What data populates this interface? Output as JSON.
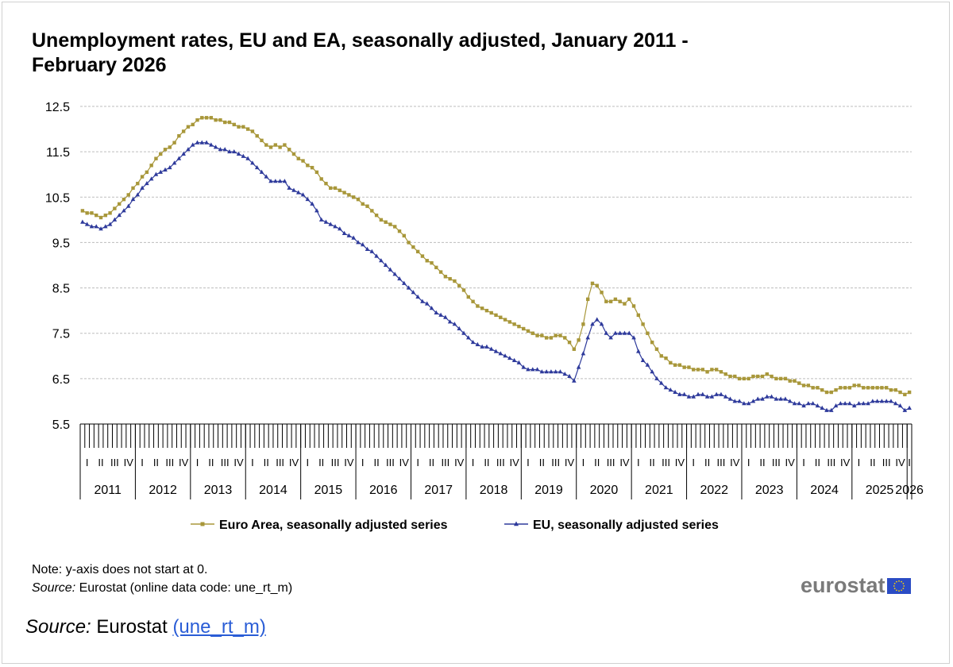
{
  "chart_data": {
    "type": "line",
    "title": "Unemployment rates, EU and EA, seasonally adjusted, January 2011 - February 2026",
    "ylim": [
      5.5,
      12.5
    ],
    "yticks": [
      "12.5",
      "11.5",
      "10.5",
      "9.5",
      "8.5",
      "7.5",
      "6.5",
      "5.5"
    ],
    "years": [
      "2011",
      "2012",
      "2013",
      "2014",
      "2015",
      "2016",
      "2017",
      "2018",
      "2019",
      "2020",
      "2021",
      "2022",
      "2023",
      "2024",
      "2025",
      "2026"
    ],
    "quarters": [
      "I",
      "II",
      "III",
      "IV"
    ],
    "x_start": "2011-01",
    "x_end": "2026-02",
    "series": [
      {
        "name": "Euro Area, seasonally adjusted series",
        "color": "#a8973a",
        "marker": "square",
        "values": [
          10.2,
          10.15,
          10.15,
          10.1,
          10.05,
          10.1,
          10.15,
          10.25,
          10.35,
          10.45,
          10.55,
          10.7,
          10.8,
          10.95,
          11.05,
          11.2,
          11.35,
          11.45,
          11.55,
          11.6,
          11.7,
          11.85,
          11.95,
          12.05,
          12.1,
          12.2,
          12.25,
          12.25,
          12.25,
          12.2,
          12.2,
          12.15,
          12.15,
          12.1,
          12.05,
          12.05,
          12.0,
          11.95,
          11.85,
          11.75,
          11.65,
          11.6,
          11.65,
          11.6,
          11.65,
          11.55,
          11.45,
          11.35,
          11.3,
          11.2,
          11.15,
          11.05,
          10.9,
          10.8,
          10.7,
          10.7,
          10.65,
          10.6,
          10.55,
          10.5,
          10.45,
          10.35,
          10.3,
          10.2,
          10.1,
          10.0,
          9.95,
          9.9,
          9.85,
          9.75,
          9.65,
          9.5,
          9.4,
          9.3,
          9.2,
          9.1,
          9.05,
          8.95,
          8.85,
          8.75,
          8.7,
          8.65,
          8.55,
          8.45,
          8.3,
          8.2,
          8.1,
          8.05,
          8.0,
          7.95,
          7.9,
          7.85,
          7.8,
          7.75,
          7.7,
          7.65,
          7.6,
          7.55,
          7.5,
          7.45,
          7.45,
          7.4,
          7.4,
          7.45,
          7.45,
          7.4,
          7.3,
          7.15,
          7.35,
          7.7,
          8.25,
          8.6,
          8.55,
          8.4,
          8.2,
          8.2,
          8.25,
          8.2,
          8.15,
          8.25,
          8.1,
          7.9,
          7.7,
          7.5,
          7.3,
          7.15,
          7.0,
          6.95,
          6.85,
          6.8,
          6.8,
          6.75,
          6.75,
          6.7,
          6.7,
          6.7,
          6.65,
          6.7,
          6.7,
          6.65,
          6.6,
          6.55,
          6.55,
          6.5,
          6.5,
          6.5,
          6.55,
          6.55,
          6.55,
          6.6,
          6.55,
          6.5,
          6.5,
          6.5,
          6.45,
          6.45,
          6.4,
          6.35,
          6.35,
          6.3,
          6.3,
          6.25,
          6.2,
          6.2,
          6.25,
          6.3,
          6.3,
          6.3,
          6.35,
          6.35,
          6.3,
          6.3,
          6.3,
          6.3,
          6.3,
          6.3,
          6.25,
          6.25,
          6.2,
          6.15,
          6.2
        ]
      },
      {
        "name": "EU, seasonally adjusted series",
        "color": "#2e3a9b",
        "marker": "triangle",
        "values": [
          9.95,
          9.9,
          9.85,
          9.85,
          9.8,
          9.85,
          9.9,
          10.0,
          10.1,
          10.2,
          10.3,
          10.45,
          10.55,
          10.7,
          10.8,
          10.9,
          11.0,
          11.05,
          11.1,
          11.15,
          11.25,
          11.35,
          11.45,
          11.55,
          11.65,
          11.7,
          11.7,
          11.7,
          11.65,
          11.6,
          11.55,
          11.55,
          11.5,
          11.5,
          11.45,
          11.4,
          11.35,
          11.25,
          11.15,
          11.05,
          10.95,
          10.85,
          10.85,
          10.85,
          10.85,
          10.7,
          10.65,
          10.6,
          10.55,
          10.45,
          10.35,
          10.2,
          10.0,
          9.95,
          9.9,
          9.85,
          9.8,
          9.7,
          9.65,
          9.6,
          9.5,
          9.45,
          9.35,
          9.3,
          9.2,
          9.1,
          9.0,
          8.9,
          8.8,
          8.7,
          8.6,
          8.5,
          8.4,
          8.3,
          8.2,
          8.15,
          8.05,
          7.95,
          7.9,
          7.85,
          7.75,
          7.7,
          7.6,
          7.5,
          7.4,
          7.3,
          7.25,
          7.2,
          7.2,
          7.15,
          7.1,
          7.05,
          7.0,
          6.95,
          6.9,
          6.85,
          6.75,
          6.7,
          6.7,
          6.7,
          6.65,
          6.65,
          6.65,
          6.65,
          6.65,
          6.6,
          6.55,
          6.45,
          6.75,
          7.05,
          7.4,
          7.7,
          7.8,
          7.7,
          7.5,
          7.4,
          7.5,
          7.5,
          7.5,
          7.5,
          7.4,
          7.1,
          6.9,
          6.8,
          6.65,
          6.5,
          6.4,
          6.3,
          6.25,
          6.2,
          6.15,
          6.15,
          6.1,
          6.1,
          6.15,
          6.15,
          6.1,
          6.1,
          6.15,
          6.15,
          6.1,
          6.05,
          6.0,
          6.0,
          5.95,
          5.95,
          6.0,
          6.05,
          6.05,
          6.1,
          6.1,
          6.05,
          6.05,
          6.05,
          6.0,
          5.95,
          5.95,
          5.9,
          5.95,
          5.95,
          5.9,
          5.85,
          5.8,
          5.8,
          5.9,
          5.95,
          5.95,
          5.95,
          5.9,
          5.95,
          5.95,
          5.95,
          6.0,
          6.0,
          6.0,
          6.0,
          6.0,
          5.95,
          5.9,
          5.8,
          5.85
        ]
      }
    ]
  },
  "note": {
    "line1": "Note: y-axis does not start at 0.",
    "source_label": "Source:",
    "source_text": " Eurostat (online data code: une_rt_m)"
  },
  "logo": {
    "text": "eurostat",
    "flag_color": "#2b4cc4",
    "star_color": "#ffd400"
  },
  "footer": {
    "source_label": "Source:",
    "source_text": " Eurostat ",
    "link_text": "(une_rt_m)"
  }
}
